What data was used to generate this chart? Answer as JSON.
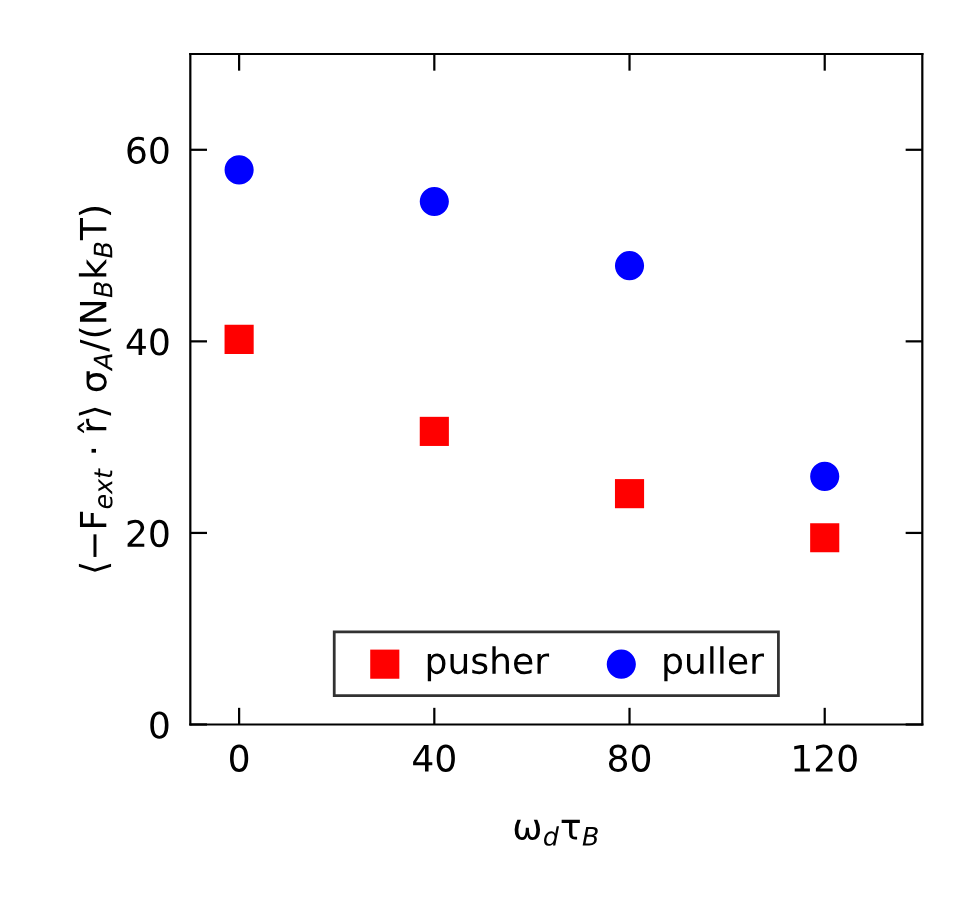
{
  "chart_data": {
    "type": "scatter",
    "xlabel": "ω$_{d}$τ$_{B}$",
    "ylabel": "⟨−F$_{ext}$ · r̂⟩ σ$_{A}$/(N$_{B}$k$_{B}$T)",
    "x": [
      0,
      40,
      80,
      120
    ],
    "series": [
      {
        "name": "pusher",
        "color": "#ff0000",
        "marker": "square",
        "values": [
          40.2,
          30.6,
          24.1,
          19.5
        ]
      },
      {
        "name": "puller",
        "color": "#0000ff",
        "marker": "circle",
        "values": [
          57.9,
          54.6,
          47.9,
          25.9
        ]
      }
    ],
    "xlim": [
      -10,
      140
    ],
    "xticks": [
      0,
      40,
      80,
      120
    ],
    "ylim": [
      0,
      70
    ],
    "yticks": [
      0,
      20,
      40,
      60
    ],
    "grid": false,
    "legend": "bottom"
  }
}
